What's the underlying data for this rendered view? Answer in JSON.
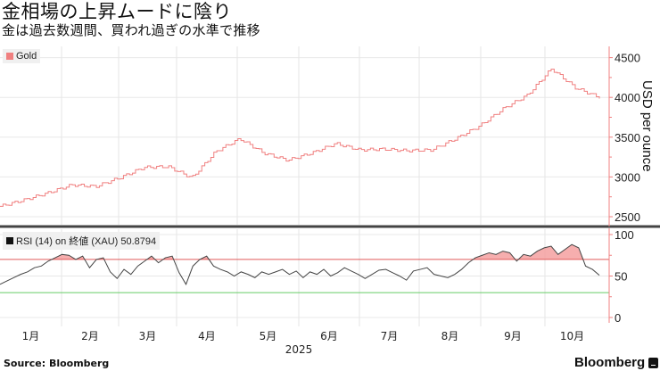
{
  "header": {
    "title": "金相場の上昇ムードに陰り",
    "subtitle": "金は過去数週間、買われ過ぎの水準で推移"
  },
  "price_panel": {
    "legend_label": "Gold",
    "legend_color": "#f08080",
    "y_axis_title": "USD per ounce",
    "y_ticks": [
      "4500",
      "4000",
      "3500",
      "3000",
      "2500"
    ]
  },
  "rsi_panel": {
    "legend_label": "RSI (14)  on 終値 (XAU) 50.8794",
    "legend_color": "#111111",
    "y_ticks": [
      "100",
      "50",
      "0"
    ],
    "overbought": 70,
    "oversold": 30,
    "overbought_color": "#e05a5a",
    "oversold_color": "#66cc66"
  },
  "x_axis": {
    "months": [
      "1月",
      "2月",
      "3月",
      "4月",
      "5月",
      "6月",
      "7月",
      "8月",
      "9月",
      "10月"
    ],
    "year_label": "2025"
  },
  "footer": {
    "source": "Source: Bloomberg",
    "brand": "Bloomberg"
  },
  "chart_data": [
    {
      "type": "line",
      "title": "Gold",
      "ylabel": "USD per ounce",
      "ylim": [
        2450,
        4600
      ],
      "yticks": [
        2500,
        3000,
        3500,
        4000,
        4500
      ],
      "x_months": [
        "1月",
        "2月",
        "3月",
        "4月",
        "5月",
        "6月",
        "7月",
        "8月",
        "9月",
        "10月"
      ],
      "x": [
        "Jan-01",
        "Jan-15",
        "Feb-01",
        "Feb-15",
        "Mar-01",
        "Mar-15",
        "Apr-01",
        "Apr-03",
        "Apr-08",
        "Apr-15",
        "Apr-22",
        "May-01",
        "May-15",
        "Jun-01",
        "Jun-13",
        "Jul-01",
        "Jul-15",
        "Aug-01",
        "Aug-15",
        "Sep-01",
        "Sep-15",
        "Oct-01",
        "Oct-08",
        "Oct-17",
        "Oct-22",
        "Oct-28"
      ],
      "series": [
        {
          "name": "Gold",
          "values": [
            2630,
            2710,
            2800,
            2900,
            2880,
            2990,
            3120,
            3130,
            2990,
            3320,
            3480,
            3300,
            3210,
            3300,
            3420,
            3340,
            3350,
            3330,
            3340,
            3480,
            3640,
            3860,
            4030,
            4360,
            4120,
            4000
          ]
        }
      ],
      "grid": true,
      "legend_position": "top-left"
    },
    {
      "type": "line",
      "title": "RSI (14) on 終値 (XAU)",
      "last_value": 50.8794,
      "ylim": [
        0,
        100
      ],
      "yticks": [
        0,
        50,
        100
      ],
      "reference_lines": [
        {
          "value": 70,
          "color": "red"
        },
        {
          "value": 30,
          "color": "green"
        }
      ],
      "series": [
        {
          "name": "RSI (14)",
          "values": [
            40,
            44,
            48,
            52,
            55,
            60,
            62,
            68,
            72,
            76,
            75,
            70,
            74,
            60,
            70,
            72,
            55,
            47,
            58,
            52,
            62,
            68,
            74,
            66,
            72,
            74,
            54,
            40,
            62,
            70,
            74,
            62,
            58,
            55,
            50,
            55,
            52,
            48,
            55,
            52,
            55,
            58,
            52,
            56,
            48,
            55,
            52,
            58,
            50,
            54,
            60,
            56,
            52,
            47,
            52,
            57,
            58,
            54,
            50,
            45,
            56,
            58,
            60,
            52,
            50,
            48,
            52,
            58,
            66,
            72,
            75,
            78,
            76,
            80,
            78,
            68,
            76,
            74,
            80,
            84,
            86,
            76,
            82,
            88,
            84,
            62,
            58,
            51
          ]
        }
      ]
    }
  ]
}
